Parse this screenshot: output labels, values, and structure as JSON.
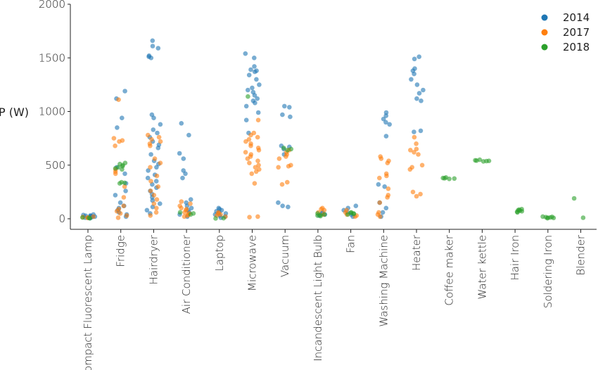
{
  "chart_data": {
    "type": "scatter",
    "title": "",
    "xlabel": "",
    "ylabel": "P (W)",
    "ylim": [
      0,
      2000
    ],
    "yticks": [
      0,
      500,
      1000,
      1500,
      2000
    ],
    "grid": false,
    "legend_position": "top-right",
    "categories": [
      "Compact Fluorescent Lamp",
      "Fridge",
      "Hairdryer",
      "Air Conditioner",
      "Laptop",
      "Microwave",
      "Vacuum",
      "Incandescent Light Bulb",
      "Fan",
      "Washing Machine",
      "Heater",
      "Coffee maker",
      "Water kettle",
      "Hair Iron",
      "Soldering Iron",
      "Blender"
    ],
    "series": [
      {
        "name": "2014",
        "color": "#1f77b4",
        "points": {
          "Compact Fluorescent Lamp": [
            5,
            10,
            15,
            20,
            25,
            30,
            35,
            40,
            12,
            18,
            22,
            28
          ],
          "Fridge": [
            1190,
            1120,
            940,
            850,
            480,
            420,
            330,
            260,
            220,
            150,
            120,
            100,
            80,
            60,
            40,
            20
          ],
          "Hairdryer": [
            1660,
            1610,
            1590,
            1520,
            1510,
            1500,
            970,
            940,
            880,
            830,
            800,
            760,
            720,
            690,
            660,
            600,
            540,
            510,
            480,
            450,
            410,
            380,
            350,
            320,
            290,
            260,
            230,
            200,
            170,
            140,
            110,
            80,
            50
          ],
          "Air Conditioner": [
            890,
            780,
            610,
            560,
            450,
            420,
            380,
            180,
            150,
            120,
            100,
            80,
            60,
            40,
            20
          ],
          "Laptop": [
            100,
            90,
            80,
            70,
            60,
            50,
            40,
            30,
            20,
            10
          ],
          "Microwave": [
            1540,
            1500,
            1420,
            1390,
            1380,
            1370,
            1340,
            1300,
            1250,
            1220,
            1200,
            1180,
            1150,
            1120,
            1100,
            1080,
            1050,
            990,
            920,
            800
          ],
          "Vacuum": [
            1050,
            1040,
            970,
            950,
            680,
            670,
            650,
            600,
            150,
            120,
            110
          ],
          "Incandescent Light Bulb": [
            60,
            50,
            40,
            30
          ],
          "Fan": [
            120,
            100,
            80,
            60,
            40,
            20
          ],
          "Washing Machine": [
            990,
            960,
            930,
            900,
            880,
            770,
            320,
            300,
            150,
            100,
            60,
            20
          ],
          "Heater": [
            1510,
            1490,
            1400,
            1380,
            1350,
            1300,
            1250,
            1200,
            1170,
            1120,
            1100,
            820,
            810
          ]
        }
      },
      {
        "name": "2017",
        "color": "#ff7f0e",
        "points": {
          "Compact Fluorescent Lamp": [
            8,
            12,
            16,
            20
          ],
          "Fridge": [
            1110,
            750,
            730,
            720,
            680,
            460,
            440,
            420,
            300,
            200,
            120,
            90,
            70,
            50,
            30,
            10
          ],
          "Hairdryer": [
            780,
            760,
            740,
            720,
            700,
            680,
            560,
            520,
            480,
            400,
            350,
            300,
            260,
            220,
            180,
            140,
            100,
            60,
            30
          ],
          "Air Conditioner": [
            160,
            140,
            120,
            100,
            90,
            80,
            60,
            50,
            40,
            30,
            20
          ],
          "Laptop": [
            60,
            50,
            40,
            30,
            20
          ],
          "Microwave": [
            920,
            800,
            780,
            760,
            740,
            720,
            700,
            680,
            660,
            640,
            620,
            600,
            580,
            560,
            540,
            520,
            500,
            480,
            460,
            440,
            420,
            330,
            20,
            15
          ],
          "Vacuum": [
            640,
            620,
            600,
            580,
            560,
            500,
            490,
            480,
            340,
            320
          ],
          "Incandescent Light Bulb": [
            100,
            90,
            80,
            60,
            40
          ],
          "Fan": [
            80,
            60,
            40,
            30,
            20
          ],
          "Washing Machine": [
            580,
            560,
            540,
            520,
            420,
            400,
            380,
            280,
            220,
            200,
            150,
            60,
            40,
            20
          ],
          "Heater": [
            760,
            700,
            650,
            640,
            620,
            600,
            500,
            480,
            460,
            250,
            230,
            210
          ]
        }
      },
      {
        "name": "2018",
        "color": "#2ca02c",
        "points": {
          "Compact Fluorescent Lamp": [
            5,
            8,
            12
          ],
          "Fridge": [
            520,
            510,
            500,
            490,
            480,
            470,
            460,
            340,
            335,
            330
          ],
          "Air Conditioner": [
            60,
            50,
            40
          ],
          "Laptop": [
            5,
            3
          ],
          "Microwave": [
            1140
          ],
          "Vacuum": [
            640,
            650,
            660
          ],
          "Incandescent Light Bulb": [
            50,
            40,
            35,
            30,
            25
          ],
          "Fan": [
            60,
            55,
            50,
            45,
            40
          ],
          "Coffee maker": [
            385,
            380,
            378,
            375,
            372
          ],
          "Water kettle": [
            550,
            545,
            542,
            540,
            538,
            535
          ],
          "Hair Iron": [
            90,
            85,
            80,
            75,
            70,
            65,
            60
          ],
          "Soldering Iron": [
            20,
            18,
            15,
            12,
            10,
            8,
            5
          ],
          "Blender": [
            190,
            10
          ]
        }
      }
    ]
  }
}
